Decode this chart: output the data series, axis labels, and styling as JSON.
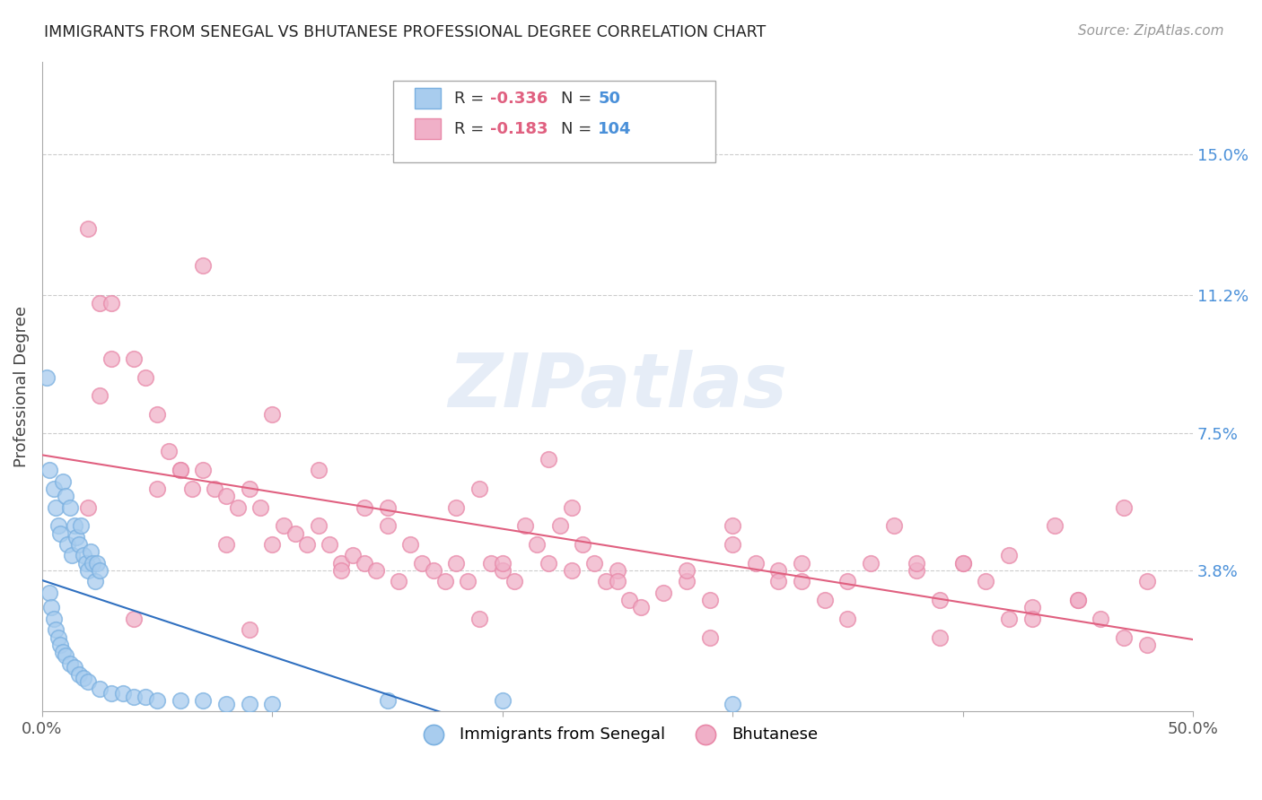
{
  "title": "IMMIGRANTS FROM SENEGAL VS BHUTANESE PROFESSIONAL DEGREE CORRELATION CHART",
  "source": "Source: ZipAtlas.com",
  "ylabel": "Professional Degree",
  "watermark": "ZIPatlas",
  "xlim": [
    0.0,
    0.5
  ],
  "ylim": [
    0.0,
    0.175
  ],
  "xticks": [
    0.0,
    0.1,
    0.2,
    0.3,
    0.4,
    0.5
  ],
  "xticklabels": [
    "0.0%",
    "",
    "",
    "",
    "",
    "50.0%"
  ],
  "ytick_labels_right": [
    "15.0%",
    "11.2%",
    "7.5%",
    "3.8%"
  ],
  "ytick_values_right": [
    0.15,
    0.112,
    0.075,
    0.038
  ],
  "grid_yticks": [
    0.15,
    0.112,
    0.075,
    0.038
  ],
  "senegal_color_edge": "#7ab0e0",
  "senegal_color_fill": "#a8ccee",
  "bhutanese_color_edge": "#e888a8",
  "bhutanese_color_fill": "#f0b0c8",
  "senegal_line_color": "#3070c0",
  "bhutanese_line_color": "#e06080",
  "background_color": "#ffffff",
  "senegal_x": [
    0.002,
    0.003,
    0.005,
    0.006,
    0.007,
    0.008,
    0.009,
    0.01,
    0.011,
    0.012,
    0.013,
    0.014,
    0.015,
    0.016,
    0.017,
    0.018,
    0.019,
    0.02,
    0.021,
    0.022,
    0.023,
    0.024,
    0.025,
    0.003,
    0.004,
    0.005,
    0.006,
    0.007,
    0.008,
    0.009,
    0.01,
    0.012,
    0.014,
    0.016,
    0.018,
    0.02,
    0.025,
    0.03,
    0.035,
    0.04,
    0.045,
    0.05,
    0.06,
    0.07,
    0.08,
    0.09,
    0.1,
    0.15,
    0.2,
    0.3
  ],
  "senegal_y": [
    0.09,
    0.065,
    0.06,
    0.055,
    0.05,
    0.048,
    0.062,
    0.058,
    0.045,
    0.055,
    0.042,
    0.05,
    0.047,
    0.045,
    0.05,
    0.042,
    0.04,
    0.038,
    0.043,
    0.04,
    0.035,
    0.04,
    0.038,
    0.032,
    0.028,
    0.025,
    0.022,
    0.02,
    0.018,
    0.016,
    0.015,
    0.013,
    0.012,
    0.01,
    0.009,
    0.008,
    0.006,
    0.005,
    0.005,
    0.004,
    0.004,
    0.003,
    0.003,
    0.003,
    0.002,
    0.002,
    0.002,
    0.003,
    0.003,
    0.002
  ],
  "bhutanese_x": [
    0.02,
    0.025,
    0.03,
    0.025,
    0.04,
    0.045,
    0.05,
    0.055,
    0.06,
    0.065,
    0.07,
    0.075,
    0.08,
    0.085,
    0.09,
    0.095,
    0.1,
    0.105,
    0.11,
    0.115,
    0.12,
    0.125,
    0.13,
    0.135,
    0.14,
    0.145,
    0.15,
    0.155,
    0.16,
    0.165,
    0.17,
    0.175,
    0.18,
    0.185,
    0.19,
    0.195,
    0.2,
    0.205,
    0.21,
    0.215,
    0.22,
    0.225,
    0.23,
    0.235,
    0.24,
    0.245,
    0.25,
    0.255,
    0.26,
    0.27,
    0.28,
    0.29,
    0.3,
    0.31,
    0.32,
    0.33,
    0.34,
    0.35,
    0.36,
    0.37,
    0.38,
    0.39,
    0.4,
    0.41,
    0.42,
    0.43,
    0.44,
    0.45,
    0.46,
    0.47,
    0.48,
    0.02,
    0.06,
    0.1,
    0.15,
    0.2,
    0.25,
    0.3,
    0.35,
    0.4,
    0.45,
    0.05,
    0.08,
    0.12,
    0.18,
    0.22,
    0.28,
    0.32,
    0.38,
    0.42,
    0.47,
    0.03,
    0.07,
    0.13,
    0.19,
    0.23,
    0.29,
    0.33,
    0.39,
    0.43,
    0.48,
    0.04,
    0.09,
    0.14
  ],
  "bhutanese_y": [
    0.13,
    0.11,
    0.095,
    0.085,
    0.095,
    0.09,
    0.08,
    0.07,
    0.065,
    0.06,
    0.065,
    0.06,
    0.058,
    0.055,
    0.06,
    0.055,
    0.08,
    0.05,
    0.048,
    0.045,
    0.05,
    0.045,
    0.04,
    0.042,
    0.04,
    0.038,
    0.05,
    0.035,
    0.045,
    0.04,
    0.038,
    0.035,
    0.04,
    0.035,
    0.06,
    0.04,
    0.038,
    0.035,
    0.05,
    0.045,
    0.04,
    0.05,
    0.038,
    0.045,
    0.04,
    0.035,
    0.038,
    0.03,
    0.028,
    0.032,
    0.035,
    0.03,
    0.045,
    0.04,
    0.038,
    0.035,
    0.03,
    0.035,
    0.04,
    0.05,
    0.038,
    0.03,
    0.04,
    0.035,
    0.025,
    0.028,
    0.05,
    0.03,
    0.025,
    0.02,
    0.035,
    0.055,
    0.065,
    0.045,
    0.055,
    0.04,
    0.035,
    0.05,
    0.025,
    0.04,
    0.03,
    0.06,
    0.045,
    0.065,
    0.055,
    0.068,
    0.038,
    0.035,
    0.04,
    0.042,
    0.055,
    0.11,
    0.12,
    0.038,
    0.025,
    0.055,
    0.02,
    0.04,
    0.02,
    0.025,
    0.018,
    0.025,
    0.022,
    0.055
  ]
}
